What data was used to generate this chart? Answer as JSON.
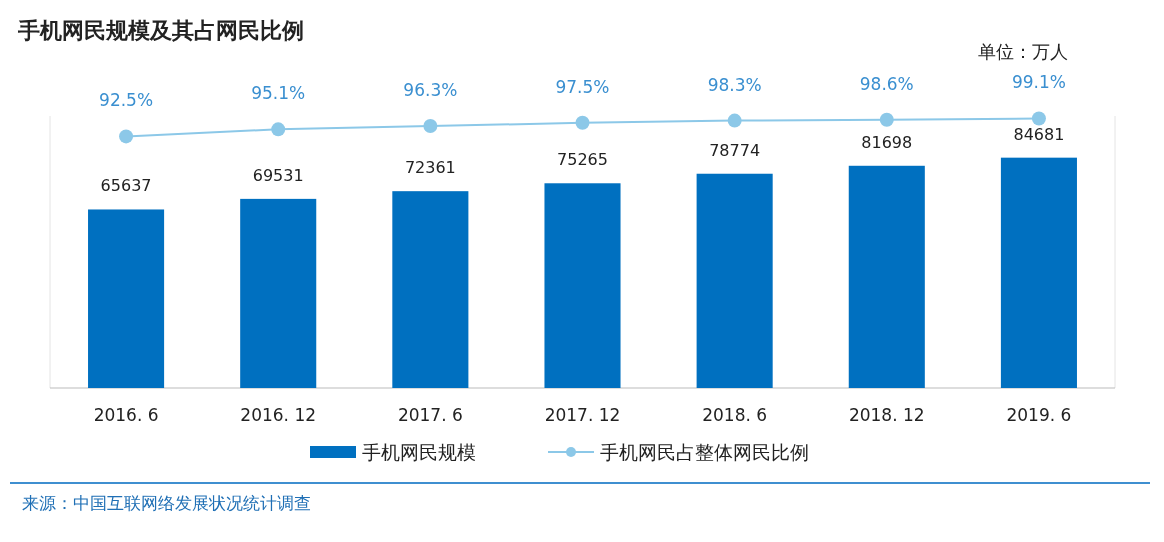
{
  "chart_data": {
    "type": "bar",
    "title": "手机网民规模及其占网民比例",
    "categories": [
      "2016. 6",
      "2016. 12",
      "2017. 6",
      "2017. 12",
      "2018. 6",
      "2018. 12",
      "2019. 6"
    ],
    "series": [
      {
        "name": "手机网民规模",
        "color": "#0070c0",
        "values": [
          65637,
          69531,
          72361,
          75265,
          78774,
          81698,
          84681
        ]
      },
      {
        "name": "手机网民占整体网民比例",
        "type": "line",
        "axis": "y2",
        "color": "#8cc8e8",
        "marker": "circle",
        "values": [
          92.5,
          95.1,
          96.3,
          97.5,
          98.3,
          98.6,
          99.1
        ],
        "value_labels": [
          "92.5%",
          "95.1%",
          "96.3%",
          "97.5%",
          "98.3%",
          "98.6%",
          "99.1%"
        ]
      }
    ],
    "ylim": [
      0,
      100000
    ],
    "y2lim": [
      0,
      100
    ],
    "data_labels": true,
    "legend": "bottom",
    "grid": false,
    "annotations": [
      "单位：万人",
      "来源：中国互联网络发展状况统计调查"
    ]
  }
}
